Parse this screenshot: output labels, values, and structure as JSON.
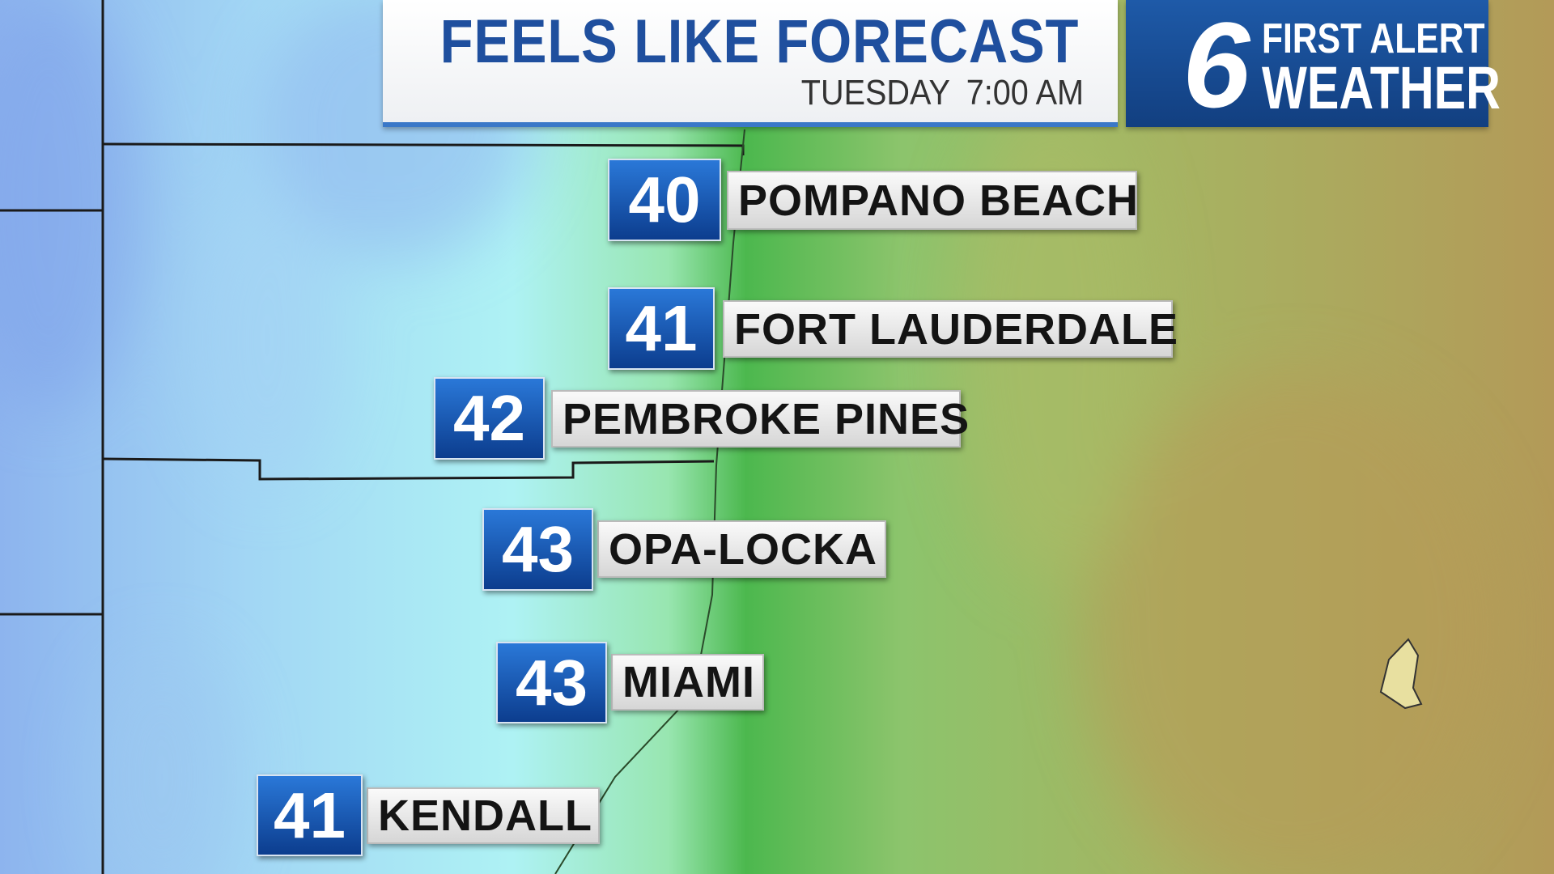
{
  "header": {
    "title": "FEELS LIKE FORECAST",
    "day": "TUESDAY",
    "time": "7:00 AM"
  },
  "logo": {
    "channel": "6",
    "line1": "FIRST ALERT",
    "line2": "WEATHER"
  },
  "locations": [
    {
      "temp": 40,
      "name": "POMPANO BEACH"
    },
    {
      "temp": 41,
      "name": "FORT LAUDERDALE"
    },
    {
      "temp": 42,
      "name": "PEMBROKE PINES"
    },
    {
      "temp": 43,
      "name": "OPA-LOCKA"
    },
    {
      "temp": 43,
      "name": "MIAMI"
    },
    {
      "temp": 41,
      "name": "KENDALL"
    }
  ]
}
